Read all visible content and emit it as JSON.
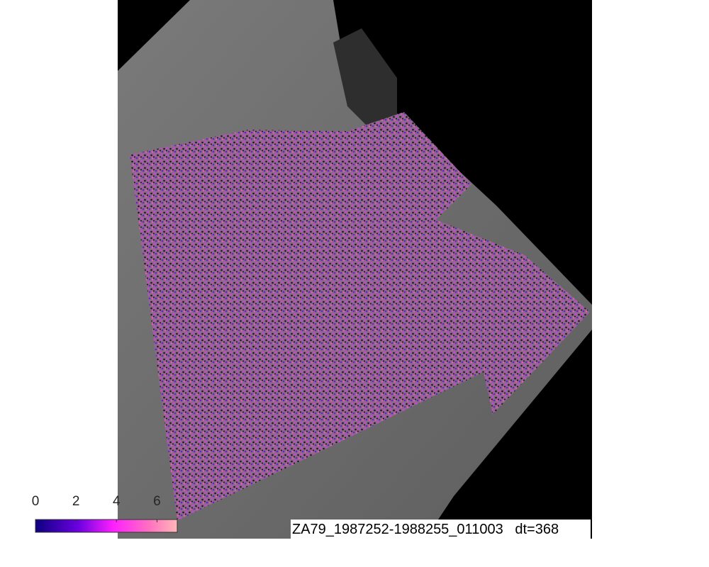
{
  "image_label": "ZA79_1987252-1988255_011003   dt=368",
  "colorbar": {
    "ticks": [
      "0",
      "2",
      "4",
      "6"
    ],
    "range": [
      0,
      7
    ],
    "colormap": [
      "#0d0080",
      "#6a00e0",
      "#ff20ff",
      "#ff70c0",
      "#ffb8b8"
    ]
  },
  "colors": {
    "background_image": "#6e6e6e",
    "no_data": "#000000",
    "overlay": "#9a3cc0"
  }
}
